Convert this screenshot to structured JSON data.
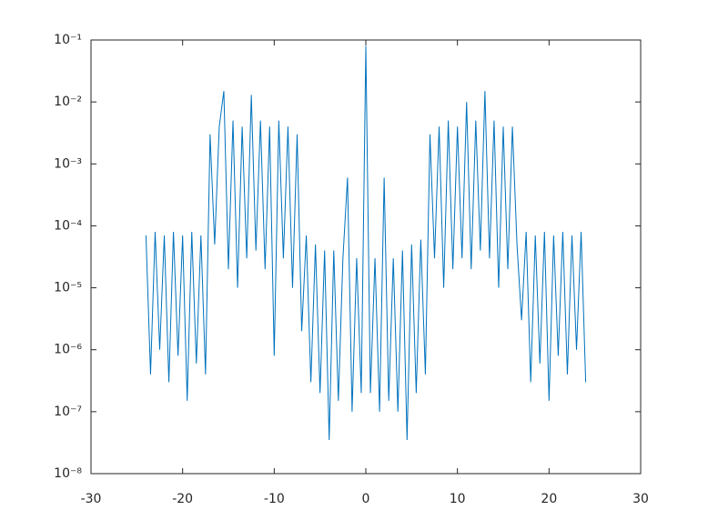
{
  "chart_data": {
    "type": "line",
    "x": [
      -24,
      -23.5,
      -23,
      -22.5,
      -22,
      -21.5,
      -21,
      -20.5,
      -20,
      -19.5,
      -19,
      -18.5,
      -18,
      -17.5,
      -17,
      -16.5,
      -16,
      -15.5,
      -15,
      -14.5,
      -14,
      -13.5,
      -13,
      -12.5,
      -12,
      -11.5,
      -11,
      -10.5,
      -10,
      -9.5,
      -9,
      -8.5,
      -8,
      -7.5,
      -7,
      -6.5,
      -6,
      -5.5,
      -5,
      -4.5,
      -4,
      -3.5,
      -3,
      -2.5,
      -2,
      -1.5,
      -1,
      -0.5,
      0,
      0.5,
      1,
      1.5,
      2,
      2.5,
      3,
      3.5,
      4,
      4.5,
      5,
      5.5,
      6,
      6.5,
      7,
      7.5,
      8,
      8.5,
      9,
      9.5,
      10,
      10.5,
      11,
      11.5,
      12,
      12.5,
      13,
      13.5,
      14,
      14.5,
      15,
      15.5,
      16,
      16.5,
      17,
      17.5,
      18,
      18.5,
      19,
      19.5,
      20,
      20.5,
      21,
      21.5,
      22,
      22.5,
      23,
      23.5,
      24
    ],
    "values": [
      7e-05,
      4e-07,
      8e-05,
      1e-06,
      7e-05,
      3e-07,
      8e-05,
      8e-07,
      7e-05,
      1.5e-07,
      8e-05,
      6e-07,
      7e-05,
      4e-07,
      0.003,
      5e-05,
      0.004,
      0.015,
      2e-05,
      0.005,
      1e-05,
      0.004,
      3e-05,
      0.013,
      4e-05,
      0.005,
      2e-05,
      0.004,
      8e-07,
      0.005,
      3e-05,
      0.004,
      1e-05,
      0.003,
      2e-06,
      7e-05,
      3e-07,
      5e-05,
      2e-07,
      4e-05,
      3.5e-08,
      4e-05,
      1.5e-07,
      3e-05,
      0.0006,
      1e-07,
      3e-05,
      2e-07,
      0.08,
      2e-07,
      3e-05,
      1e-07,
      0.0006,
      1.5e-07,
      3e-05,
      1e-07,
      4e-05,
      3.5e-08,
      5e-05,
      2e-07,
      6e-05,
      4e-07,
      0.003,
      3e-05,
      0.004,
      1e-05,
      0.005,
      2e-05,
      0.004,
      3e-05,
      0.01,
      2e-05,
      0.005,
      4e-05,
      0.015,
      3e-05,
      0.005,
      1e-05,
      0.004,
      2e-05,
      0.004,
      5e-05,
      3e-06,
      8e-05,
      3e-07,
      7e-05,
      6e-07,
      8e-05,
      1.5e-07,
      7e-05,
      8e-07,
      8e-05,
      4e-07,
      7e-05,
      1e-06,
      8e-05,
      3e-07
    ],
    "color": "#0072bd",
    "xlim": [
      -30,
      30
    ],
    "xticks": [
      -30,
      -20,
      -10,
      0,
      10,
      20,
      30
    ],
    "ylim": [
      1e-08,
      0.1
    ],
    "log_y": true,
    "yticks": [
      {
        "value": 1e-08,
        "label": "10⁻⁸"
      },
      {
        "value": 1e-07,
        "label": "10⁻⁷"
      },
      {
        "value": 1e-06,
        "label": "10⁻⁶"
      },
      {
        "value": 1e-05,
        "label": "10⁻⁵"
      },
      {
        "value": 0.0001,
        "label": "10⁻⁴"
      },
      {
        "value": 0.001,
        "label": "10⁻³"
      },
      {
        "value": 0.01,
        "label": "10⁻²"
      },
      {
        "value": 0.1,
        "label": "10⁻¹"
      }
    ]
  }
}
